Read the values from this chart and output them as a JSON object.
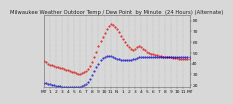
{
  "title": "Milwaukee Weather Outdoor Temp / Dew Point  by Minute  (24 Hours) (Alternate)",
  "title_fontsize": 3.8,
  "title_color": "#222222",
  "bg_color": "#d8d8d8",
  "plot_bg_color": "#d8d8d8",
  "grid_color": "#aaaaaa",
  "ylim": [
    18,
    85
  ],
  "xlim": [
    0,
    1440
  ],
  "temp_color": "#dd0000",
  "dew_color": "#0000cc",
  "temp_data": [
    [
      0,
      42
    ],
    [
      20,
      41
    ],
    [
      40,
      40
    ],
    [
      60,
      39
    ],
    [
      80,
      39
    ],
    [
      100,
      38
    ],
    [
      120,
      37
    ],
    [
      140,
      37
    ],
    [
      160,
      36
    ],
    [
      180,
      36
    ],
    [
      200,
      35
    ],
    [
      220,
      34
    ],
    [
      240,
      34
    ],
    [
      260,
      33
    ],
    [
      280,
      32
    ],
    [
      300,
      32
    ],
    [
      320,
      31
    ],
    [
      340,
      30
    ],
    [
      360,
      30
    ],
    [
      380,
      31
    ],
    [
      400,
      32
    ],
    [
      420,
      33
    ],
    [
      440,
      35
    ],
    [
      460,
      38
    ],
    [
      480,
      41
    ],
    [
      500,
      46
    ],
    [
      520,
      51
    ],
    [
      540,
      56
    ],
    [
      560,
      61
    ],
    [
      580,
      65
    ],
    [
      600,
      68
    ],
    [
      620,
      72
    ],
    [
      640,
      75
    ],
    [
      660,
      77
    ],
    [
      680,
      76
    ],
    [
      700,
      74
    ],
    [
      720,
      72
    ],
    [
      740,
      69
    ],
    [
      760,
      66
    ],
    [
      780,
      63
    ],
    [
      800,
      60
    ],
    [
      820,
      57
    ],
    [
      840,
      55
    ],
    [
      860,
      54
    ],
    [
      880,
      53
    ],
    [
      900,
      54
    ],
    [
      920,
      55
    ],
    [
      940,
      56
    ],
    [
      960,
      55
    ],
    [
      980,
      54
    ],
    [
      1000,
      53
    ],
    [
      1020,
      51
    ],
    [
      1040,
      50
    ],
    [
      1060,
      49
    ],
    [
      1080,
      49
    ],
    [
      1100,
      48
    ],
    [
      1120,
      48
    ],
    [
      1140,
      47
    ],
    [
      1160,
      47
    ],
    [
      1180,
      46
    ],
    [
      1200,
      46
    ],
    [
      1220,
      46
    ],
    [
      1240,
      46
    ],
    [
      1260,
      46
    ],
    [
      1280,
      45
    ],
    [
      1300,
      45
    ],
    [
      1320,
      45
    ],
    [
      1340,
      44
    ],
    [
      1360,
      44
    ],
    [
      1380,
      44
    ],
    [
      1400,
      44
    ],
    [
      1420,
      44
    ],
    [
      1440,
      44
    ]
  ],
  "dew_data": [
    [
      0,
      22
    ],
    [
      20,
      22
    ],
    [
      40,
      21
    ],
    [
      60,
      21
    ],
    [
      80,
      20
    ],
    [
      100,
      20
    ],
    [
      120,
      19
    ],
    [
      140,
      19
    ],
    [
      160,
      19
    ],
    [
      180,
      18
    ],
    [
      200,
      18
    ],
    [
      220,
      18
    ],
    [
      240,
      18
    ],
    [
      260,
      18
    ],
    [
      280,
      18
    ],
    [
      300,
      18
    ],
    [
      320,
      18
    ],
    [
      340,
      18
    ],
    [
      360,
      18
    ],
    [
      380,
      19
    ],
    [
      400,
      20
    ],
    [
      420,
      21
    ],
    [
      440,
      23
    ],
    [
      460,
      26
    ],
    [
      480,
      29
    ],
    [
      500,
      33
    ],
    [
      520,
      37
    ],
    [
      540,
      40
    ],
    [
      560,
      43
    ],
    [
      580,
      45
    ],
    [
      600,
      46
    ],
    [
      620,
      47
    ],
    [
      640,
      47
    ],
    [
      660,
      47
    ],
    [
      680,
      46
    ],
    [
      700,
      45
    ],
    [
      720,
      44
    ],
    [
      740,
      44
    ],
    [
      760,
      43
    ],
    [
      780,
      43
    ],
    [
      800,
      43
    ],
    [
      820,
      43
    ],
    [
      840,
      43
    ],
    [
      860,
      43
    ],
    [
      880,
      44
    ],
    [
      900,
      44
    ],
    [
      920,
      45
    ],
    [
      940,
      46
    ],
    [
      960,
      46
    ],
    [
      980,
      46
    ],
    [
      1000,
      46
    ],
    [
      1020,
      46
    ],
    [
      1040,
      46
    ],
    [
      1060,
      46
    ],
    [
      1080,
      46
    ],
    [
      1100,
      46
    ],
    [
      1120,
      46
    ],
    [
      1140,
      46
    ],
    [
      1160,
      46
    ],
    [
      1180,
      46
    ],
    [
      1200,
      46
    ],
    [
      1220,
      46
    ],
    [
      1240,
      46
    ],
    [
      1260,
      46
    ],
    [
      1280,
      46
    ],
    [
      1300,
      46
    ],
    [
      1320,
      46
    ],
    [
      1340,
      46
    ],
    [
      1360,
      46
    ],
    [
      1380,
      46
    ],
    [
      1400,
      46
    ],
    [
      1420,
      46
    ],
    [
      1440,
      46
    ]
  ],
  "xtick_positions": [
    0,
    60,
    120,
    180,
    240,
    300,
    360,
    420,
    480,
    540,
    600,
    660,
    720,
    780,
    840,
    900,
    960,
    1020,
    1080,
    1140,
    1200,
    1260,
    1320,
    1380,
    1440
  ],
  "xtick_labels": [
    "MT",
    "1",
    "2",
    "3",
    "4",
    "5",
    "6",
    "7",
    "8",
    "9",
    "10",
    "11",
    "N",
    "1",
    "2",
    "3",
    "4",
    "5",
    "6",
    "7",
    "8",
    "9",
    "10",
    "11",
    "MT"
  ],
  "ytick_positions": [
    20,
    30,
    40,
    50,
    60,
    70,
    80
  ],
  "ytick_labels": [
    "20",
    "30",
    "40",
    "50",
    "60",
    "70",
    "80"
  ],
  "tick_fontsize": 3.2,
  "tick_color": "#111111",
  "axis_color": "#666666",
  "markersize": 0.9
}
